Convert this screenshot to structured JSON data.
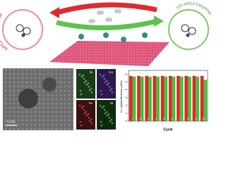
{
  "header": {
    "left_label": "NPCZ-Hydrogenation",
    "right_label": "12H-NPCZ-Dehydrogenation"
  },
  "tem": {
    "scale_label": "5 nm",
    "maps": [
      "Ni",
      "Co",
      "Fe",
      "Ni"
    ]
  },
  "chart_data": {
    "type": "bar",
    "ylabel": "H₂ Uptake/Release (wt%)",
    "xlabel": "Cycle",
    "categories": [
      "1",
      "2",
      "3",
      "4",
      "5",
      "6",
      "7",
      "8",
      "9",
      "10"
    ],
    "series": [
      {
        "color": "#e3262b",
        "values": [
          5.8,
          5.8,
          5.8,
          5.8,
          5.8,
          5.8,
          5.8,
          5.8,
          5.8,
          5.8
        ]
      },
      {
        "color": "#3ec43c",
        "values": [
          5.7,
          5.7,
          5.7,
          5.7,
          5.7,
          5.7,
          5.7,
          5.7,
          5.7,
          5.3
        ]
      }
    ],
    "ylim": [
      0,
      6.5
    ],
    "yticks": [
      0,
      1,
      2,
      3,
      4,
      5,
      6
    ]
  }
}
